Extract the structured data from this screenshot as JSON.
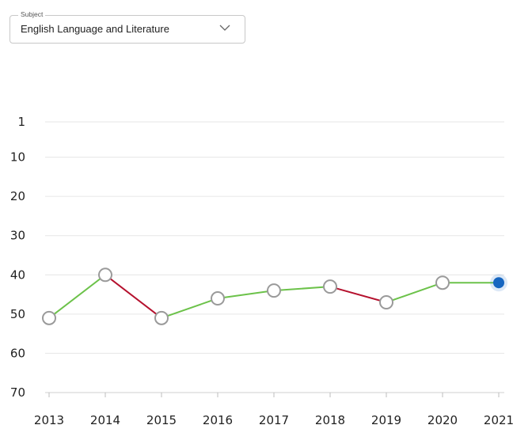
{
  "subject_select": {
    "legend": "Subject",
    "value": "English Language and Literature",
    "icon": "chevron-down-icon"
  },
  "colors": {
    "rise": "#6cc24a",
    "fall": "#b5112e",
    "marker_fill": "#ffffff",
    "marker_stroke": "#9a9a9a",
    "current_marker": "#1565c0",
    "grid": "#e6e6e6"
  },
  "chart_data": {
    "type": "line",
    "title": "",
    "xlabel": "",
    "ylabel": "",
    "y_inverted": true,
    "ylim": [
      1,
      70
    ],
    "y_ticks": [
      1,
      10,
      20,
      30,
      40,
      50,
      60,
      70
    ],
    "x": [
      "2013",
      "2014",
      "2015",
      "2016",
      "2017",
      "2018",
      "2019",
      "2020",
      "2021"
    ],
    "series": [
      {
        "values": [
          51,
          40,
          51,
          46,
          44,
          43,
          47,
          42,
          42
        ]
      }
    ],
    "grid": true,
    "segment_color_rule": "green when rank improves or holds, red when rank worsens",
    "highlighted_point": "2021"
  }
}
